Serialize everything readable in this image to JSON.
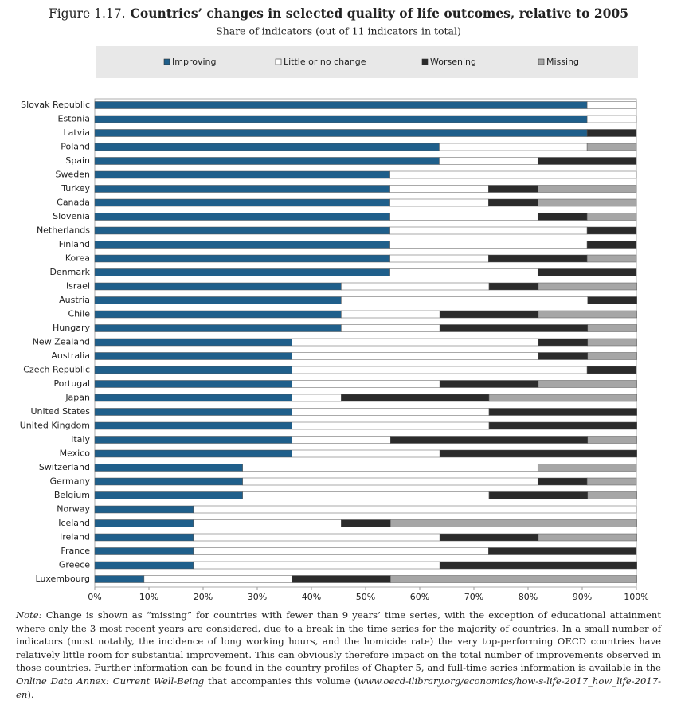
{
  "chart_data": {
    "type": "stacked-bar-horizontal",
    "figure_label": "Figure 1.17.",
    "title": "Countries’ changes in selected quality of life outcomes, relative to 2005",
    "subtitle": "Share of indicators (out of 11 indicators in total)",
    "categories": [
      "Slovak Republic",
      "Estonia",
      "Latvia",
      "Poland",
      "Spain",
      "Sweden",
      "Turkey",
      "Canada",
      "Slovenia",
      "Netherlands",
      "Finland",
      "Korea",
      "Denmark",
      "Israel",
      "Austria",
      "Chile",
      "Hungary",
      "New Zealand",
      "Australia",
      "Czech Republic",
      "Portugal",
      "Japan",
      "United States",
      "United Kingdom",
      "Italy",
      "Mexico",
      "Switzerland",
      "Germany",
      "Belgium",
      "Norway",
      "Iceland",
      "Ireland",
      "France",
      "Greece",
      "Luxembourg"
    ],
    "series": [
      {
        "name": "Improving",
        "color": "#1f5f8b",
        "values": [
          90.9,
          90.9,
          90.9,
          63.6,
          63.6,
          54.5,
          54.5,
          54.5,
          54.5,
          54.5,
          54.5,
          54.5,
          54.5,
          45.5,
          45.5,
          45.5,
          45.5,
          36.4,
          36.4,
          36.4,
          36.4,
          36.4,
          36.4,
          36.4,
          36.4,
          36.4,
          27.3,
          27.3,
          27.3,
          18.2,
          18.2,
          18.2,
          18.2,
          18.2,
          9.1
        ]
      },
      {
        "name": "Little or no change",
        "color": "#ffffff",
        "values": [
          9.1,
          9.1,
          0,
          27.3,
          18.2,
          45.5,
          18.2,
          18.2,
          27.3,
          36.4,
          36.4,
          18.2,
          27.3,
          27.3,
          45.5,
          18.2,
          18.2,
          45.5,
          45.5,
          54.5,
          27.3,
          9.1,
          36.4,
          36.4,
          18.2,
          27.3,
          54.5,
          54.5,
          45.5,
          81.8,
          27.3,
          45.5,
          54.5,
          45.5,
          27.3
        ]
      },
      {
        "name": "Worsening",
        "color": "#2b2b2b",
        "values": [
          0,
          0,
          9.1,
          0,
          18.2,
          0,
          9.1,
          9.1,
          9.1,
          9.1,
          9.1,
          18.2,
          18.2,
          9.1,
          9.1,
          18.2,
          27.3,
          9.1,
          9.1,
          9.1,
          18.2,
          27.3,
          27.3,
          27.3,
          36.4,
          36.4,
          0,
          9.1,
          18.2,
          0,
          9.1,
          18.2,
          27.3,
          36.4,
          18.2
        ]
      },
      {
        "name": "Missing",
        "color": "#a6a6a6",
        "values": [
          0,
          0,
          0,
          9.1,
          0,
          0,
          18.2,
          18.2,
          9.1,
          0,
          0,
          9.1,
          0,
          18.2,
          0,
          18.2,
          9.1,
          9.1,
          9.1,
          0,
          18.2,
          27.3,
          0,
          0,
          9.1,
          0,
          18.2,
          9.1,
          9.1,
          0,
          45.5,
          18.2,
          0,
          0,
          45.5
        ]
      }
    ],
    "xlim": [
      0,
      100
    ],
    "xticks": [
      {
        "value": 0,
        "label": "0%"
      },
      {
        "value": 10,
        "label": "10%"
      },
      {
        "value": 20,
        "label": "20%"
      },
      {
        "value": 30,
        "label": "30%"
      },
      {
        "value": 40,
        "label": "40%"
      },
      {
        "value": 50,
        "label": "50%"
      },
      {
        "value": 60,
        "label": "60%"
      },
      {
        "value": 70,
        "label": "70%"
      },
      {
        "value": 80,
        "label": "80%"
      },
      {
        "value": 90,
        "label": "90%"
      },
      {
        "value": 100,
        "label": "100%"
      }
    ],
    "legend": "top",
    "note": [
      "Note:",
      "Change is shown as “missing” for countries with fewer than 9 years’ time series, with the exception of educational attainment where only the 3 most recent years are considered, due to a break in the time series for the majority of countries. In a small number of indicators (most notably, the incidence of long working hours, and the homicide rate) the very top-performing OECD countries have relatively little room for substantial improvement. This can obviously therefore impact on the total number of improvements observed in those countries. Further information can be found in the country profiles of Chapter 5, and full-time series information is available in the",
      "Online Data Annex: Current Well-Being",
      "that accompanies this volume (",
      "www.oecd-ilibrary.org/economics/how-s-life-2017_how_life-2017-en",
      ")."
    ]
  }
}
